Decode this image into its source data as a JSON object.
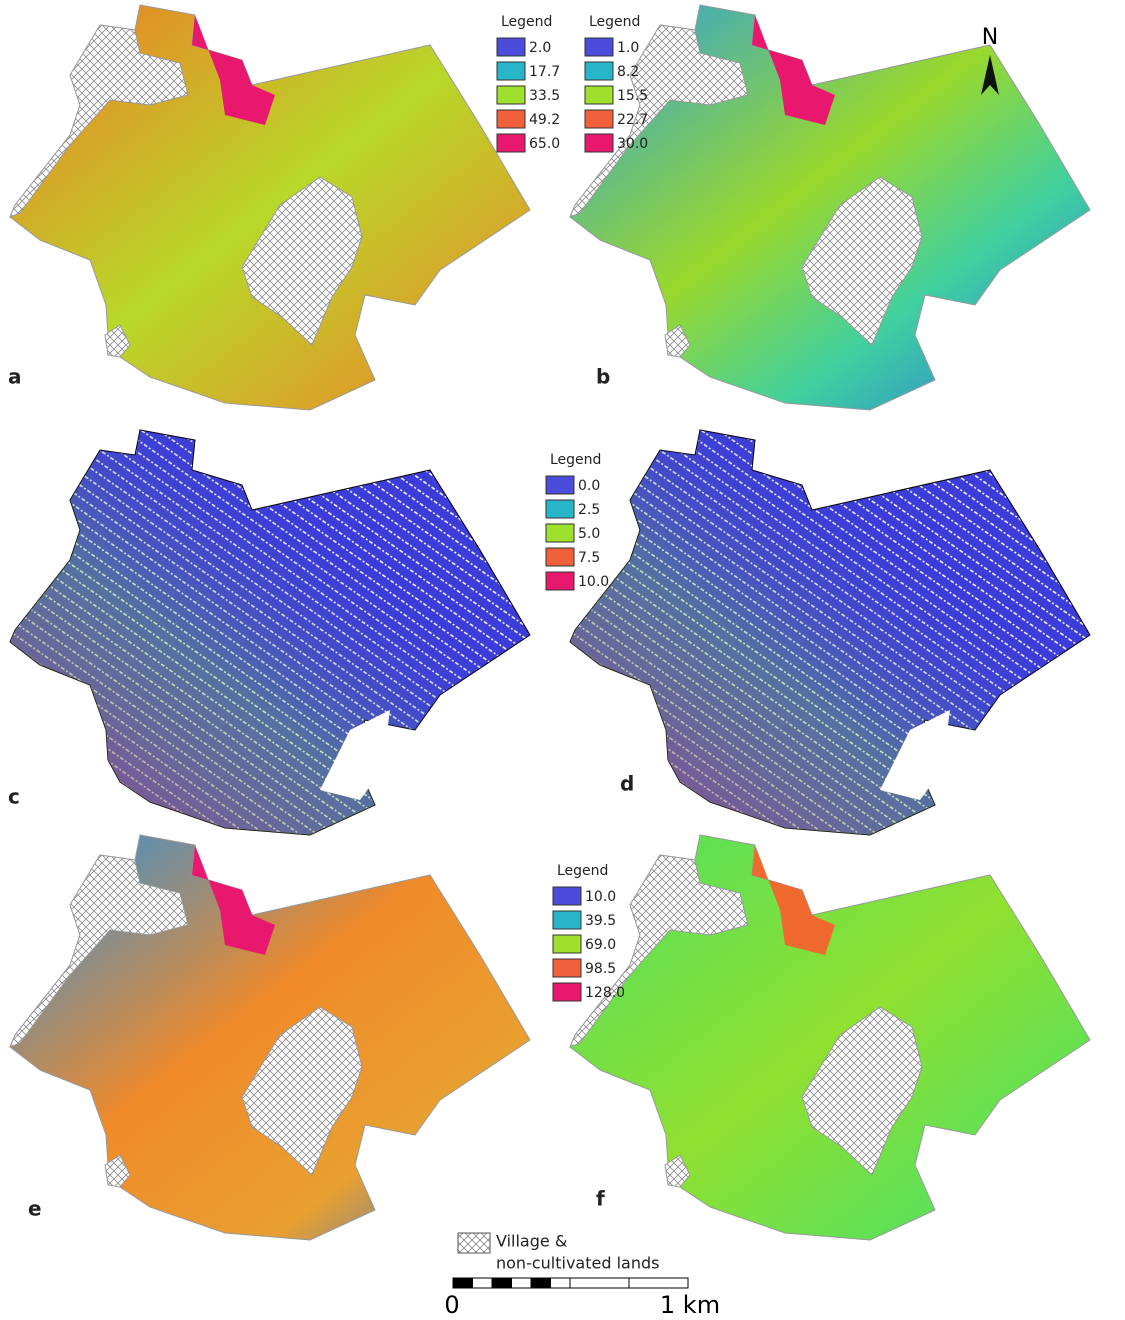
{
  "panels": [
    {
      "label": "a"
    },
    {
      "label": "b"
    },
    {
      "label": "c"
    },
    {
      "label": "d"
    },
    {
      "label": "e"
    },
    {
      "label": "f"
    }
  ],
  "legends": [
    {
      "title": "Legend",
      "items": [
        "2.0",
        "17.7",
        "33.5",
        "49.2",
        "65.0"
      ]
    },
    {
      "title": "Legend",
      "items": [
        "1.0",
        "8.2",
        "15.5",
        "22.7",
        "30.0"
      ]
    },
    {
      "title": "Legend",
      "items": [
        "0.0",
        "2.5",
        "5.0",
        "7.5",
        "10.0"
      ]
    },
    {
      "title": "Legend",
      "items": [
        "10.0",
        "39.5",
        "69.0",
        "98.5",
        "128.0"
      ]
    }
  ],
  "north": "N",
  "key": {
    "lines": [
      "Village &",
      "non-cultivated lands"
    ]
  },
  "scale_bar": {
    "labels": [
      "0",
      "1 km"
    ]
  }
}
